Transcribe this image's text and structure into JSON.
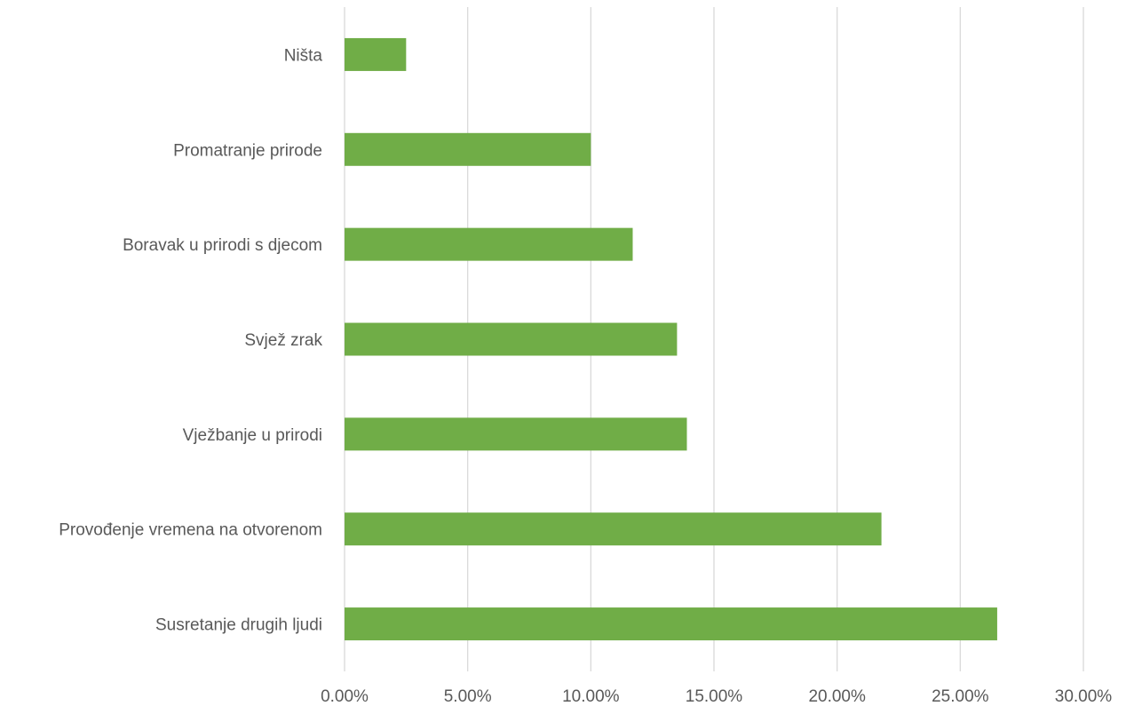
{
  "chart_data": {
    "type": "bar",
    "orientation": "horizontal",
    "categories": [
      "Ništa",
      "Promatranje prirode",
      "Boravak u prirodi s djecom",
      "Svjež zrak",
      "Vježbanje u prirodi",
      "Provođenje vremena na otvorenom",
      "Susretanje drugih ljudi"
    ],
    "values": [
      2.5,
      10.0,
      11.7,
      13.5,
      13.9,
      21.8,
      26.5
    ],
    "value_unit": "percent",
    "xlim": [
      0,
      30
    ],
    "x_ticks": [
      "0.00%",
      "5.00%",
      "10.00%",
      "15.00%",
      "20.00%",
      "25.00%",
      "30.00%"
    ],
    "grid": "vertical",
    "legend": "none",
    "title": "",
    "xlabel": "",
    "ylabel": "",
    "colors": {
      "bar": "#70ad47",
      "grid": "#d9d9d9",
      "text": "#595959"
    }
  }
}
